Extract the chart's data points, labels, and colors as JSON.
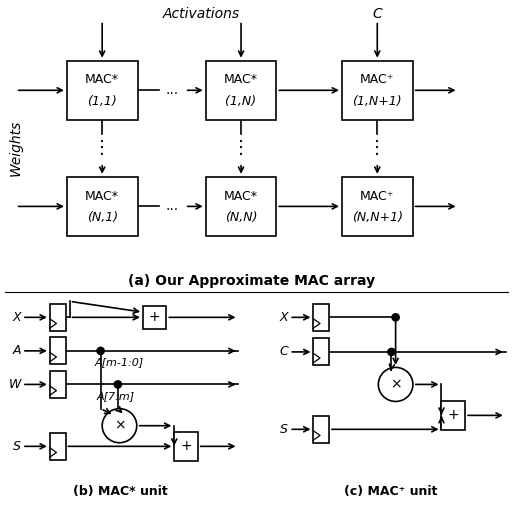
{
  "title_a": "(a) Our Approximate MAC array",
  "title_b": "(b) MAC* unit",
  "title_c": "(c) MAC⁺ unit",
  "activations_label": "Activations",
  "C_label": "C",
  "weights_label": "Weights",
  "bg_color": "#ffffff"
}
